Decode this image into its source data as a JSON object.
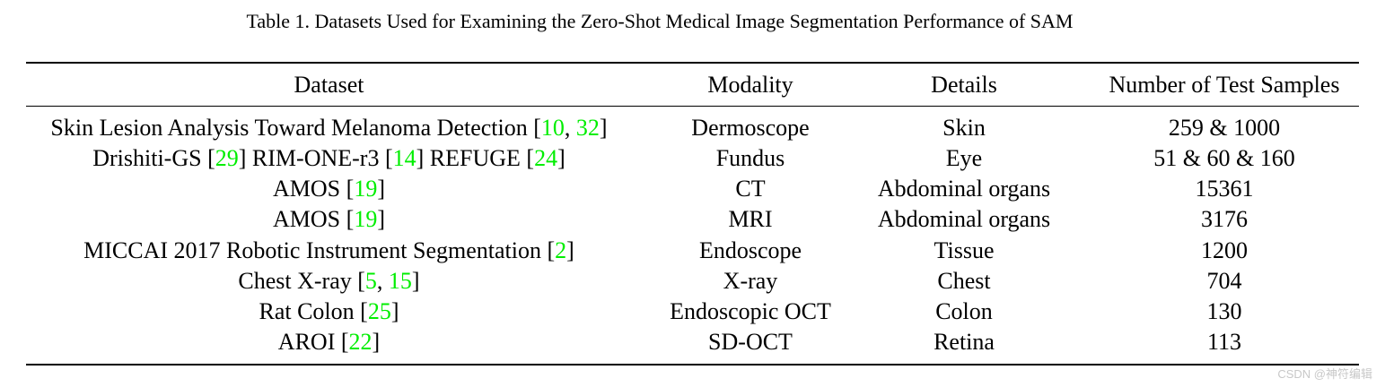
{
  "caption": "Table 1. Datasets Used for Examining the Zero-Shot Medical Image Segmentation Performance of SAM",
  "table": {
    "headers": [
      "Dataset",
      "Modality",
      "Details",
      "Number of Test Samples"
    ],
    "rows": [
      {
        "dataset": "Skin Lesion Analysis Toward Melanoma Detection",
        "citations": [
          [
            "[",
            "10",
            ", ",
            "32",
            "]"
          ]
        ],
        "modality": "Dermoscope",
        "details": "Skin",
        "samples": "259 & 1000"
      },
      {
        "dataset": "Drishiti-GS",
        "dataset_parts": [
          {
            "name": "Drishiti-GS",
            "cite": "29"
          },
          {
            "name": "RIM-ONE-r3",
            "cite": "14"
          },
          {
            "name": "REFUGE",
            "cite": "24"
          }
        ],
        "modality": "Fundus",
        "details": "Eye",
        "samples": "51 & 60 & 160"
      },
      {
        "dataset": "AMOS",
        "cite": "19",
        "modality": "CT",
        "details": "Abdominal organs",
        "samples": "15361"
      },
      {
        "dataset": "AMOS",
        "cite": "19",
        "modality": "MRI",
        "details": "Abdominal organs",
        "samples": "3176"
      },
      {
        "dataset": "MICCAI 2017 Robotic Instrument Segmentation",
        "cite": "2",
        "modality": "Endoscope",
        "details": "Tissue",
        "samples": "1200"
      },
      {
        "dataset": "Chest X-ray",
        "cites": [
          "5",
          "15"
        ],
        "modality": "X-ray",
        "details": "Chest",
        "samples": "704"
      },
      {
        "dataset": "Rat Colon",
        "cite": "25",
        "modality": "Endoscopic OCT",
        "details": "Colon",
        "samples": "130"
      },
      {
        "dataset": "AROI",
        "cite": "22",
        "modality": "SD-OCT",
        "details": "Retina",
        "samples": "113"
      }
    ]
  },
  "watermark": "CSDN @神符编辑",
  "colors": {
    "citation": "#00ee00",
    "text": "#000000",
    "watermark": "#c8c8c8"
  }
}
